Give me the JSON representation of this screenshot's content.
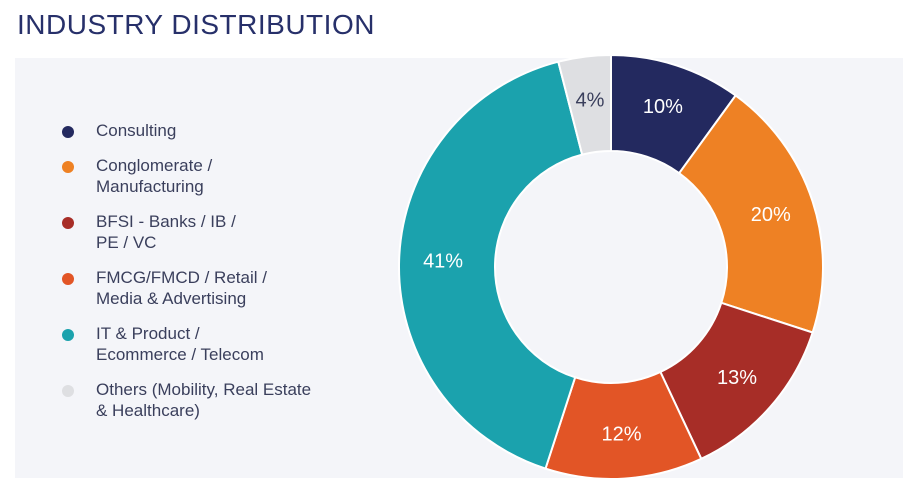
{
  "header": {
    "title": "INDUSTRY DISTRIBUTION"
  },
  "colors": {
    "title": "#27306a",
    "panel_background": "#f4f5f9"
  },
  "chart_data": {
    "type": "pie",
    "variant": "donut",
    "title": "INDUSTRY DISTRIBUTION",
    "legend_position": "left",
    "slices": [
      {
        "name": "Consulting",
        "legend_lines": [
          "Consulting"
        ],
        "value": 10,
        "label": "10%",
        "color": "#23295f",
        "label_color": "#ffffff"
      },
      {
        "name": "Conglomerate / Manufacturing",
        "legend_lines": [
          "Conglomerate /",
          "Manufacturing"
        ],
        "value": 20,
        "label": "20%",
        "color": "#ee8124",
        "label_color": "#ffffff"
      },
      {
        "name": "BFSI - Banks / IB / PE / VC",
        "legend_lines": [
          "BFSI - Banks / IB /",
          "PE / VC"
        ],
        "value": 13,
        "label": "13%",
        "color": "#a72d27",
        "label_color": "#ffffff"
      },
      {
        "name": "FMCG/FMCD / Retail / Media & Advertising",
        "legend_lines": [
          "FMCG/FMCD / Retail /",
          "Media & Advertising"
        ],
        "value": 12,
        "label": "12%",
        "color": "#e25526",
        "label_color": "#ffffff"
      },
      {
        "name": "IT & Product / Ecommerce / Telecom",
        "legend_lines": [
          "IT & Product /",
          "Ecommerce / Telecom"
        ],
        "value": 41,
        "label": "41%",
        "color": "#1ba2ad",
        "label_color": "#ffffff"
      },
      {
        "name": "Others (Mobility, Real Estate & Healthcare)",
        "legend_lines": [
          "Others (Mobility, Real Estate",
          "& Healthcare)"
        ],
        "value": 4,
        "label": "4%",
        "color": "#dedfe2",
        "label_color": "#3a3f5c"
      }
    ]
  }
}
